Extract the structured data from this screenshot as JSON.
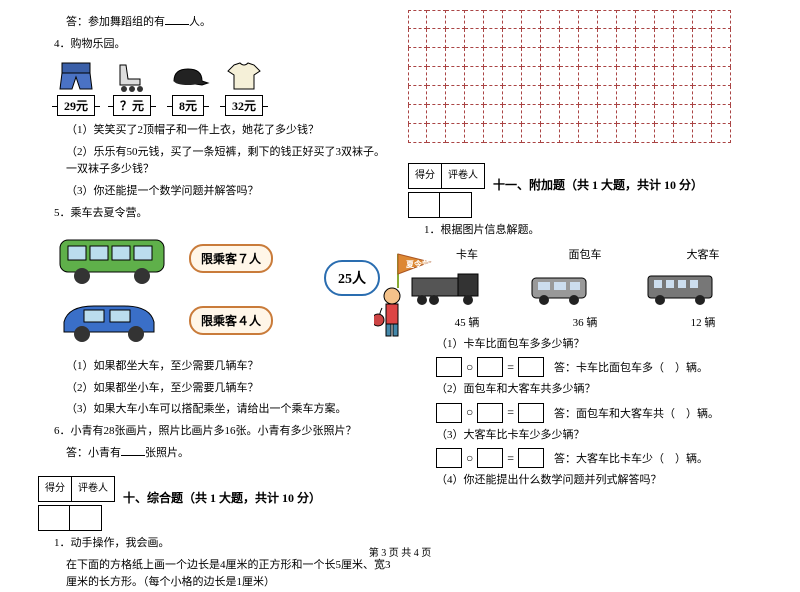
{
  "left": {
    "answer_dance": "答：参加舞蹈组的有",
    "people_suffix": "人。",
    "q4_title": "4．购物乐园。",
    "shop": [
      {
        "price": "29元",
        "icon": "shorts"
      },
      {
        "price": "？元",
        "icon": "skates"
      },
      {
        "price": "8元",
        "icon": "cap"
      },
      {
        "price": "32元",
        "icon": "tshirt"
      }
    ],
    "q4_1": "（1）笑笑买了2顶帽子和一件上衣，她花了多少钱？",
    "q4_2": "（2）乐乐有50元钱，买了一条短裤，剩下的钱正好买了3双袜子。一双袜子多少钱？",
    "q4_3": "（3）你还能提一个数学问题并解答吗？",
    "q5_title": "5．乘车去夏令营。",
    "bus_sign1": "限乘客７人",
    "bus_sign2": "限乘客４人",
    "people_count": "25人",
    "q5_1": "（1）如果都坐大车，至少需要几辆车？",
    "q5_2": "（2）如果都坐小车，至少需要几辆车？",
    "q5_3": "（3）如果大车小车可以搭配乘坐，请给出一个乘车方案。",
    "q6": "6．小青有28张画片，照片比画片多16张。小青有多少张照片？",
    "q6_ans": "答：小青有",
    "q6_suffix": "张照片。",
    "score_labels": [
      "得分",
      "评卷人"
    ],
    "section10": "十、综合题（共 1 大题，共计 10 分）",
    "q10_1": "1．动手操作，我会画。",
    "q10_1_body": "在下面的方格纸上画一个边长是4厘米的正方形和一个长5厘米、宽3厘米的长方形。（每个小格的边长是1厘米）"
  },
  "right": {
    "grid": {
      "rows": 7,
      "cols": 17
    },
    "score_labels": [
      "得分",
      "评卷人"
    ],
    "section11": "十一、附加题（共 1 大题，共计 10 分）",
    "q1_title": "1．根据图片信息解题。",
    "vehicles": [
      {
        "label": "卡车",
        "count": "45 辆"
      },
      {
        "label": "面包车",
        "count": "36 辆"
      },
      {
        "label": "大客车",
        "count": "12 辆"
      }
    ],
    "sub1": "（1）卡车比面包车多多少辆？",
    "ans1": "答：卡车比面包车多（　）辆。",
    "sub2": "（2）面包车和大客车共多少辆？",
    "ans2": "答：面包车和大客车共（　）辆。",
    "sub3": "（3）大客车比卡车少多少辆？",
    "ans3": "答：大客车比卡车少（　）辆。",
    "sub4": "（4）你还能提出什么数学问题并列式解答吗？"
  },
  "footer": "第 3 页 共 4 页",
  "colors": {
    "grid_border": "#a44",
    "bubble_border": "#c97b3a",
    "bubble_bg": "#fff6e8",
    "badge_border": "#2a6db0"
  }
}
